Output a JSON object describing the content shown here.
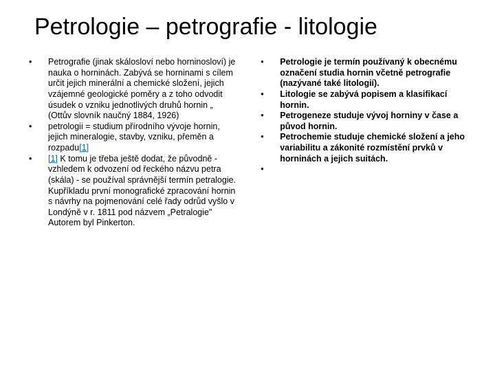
{
  "title": "Petrologie – petrografie - litologie",
  "left_items": [
    "Petrografie (jinak skálosloví nebo horninosloví) je nauka o horninách. Zabývá se horninami s cílem určit jejich minerální a chemické složení, jejich vzájemné geologické poměry a z toho odvodit úsudek o vzniku jednotlivých druhů hornin „ (Ottův slovník naučný 1884, 1926)",
    " petrologii = studium přírodního vývoje hornin, jejich mineralogie, stavby, vzniku, přeměn a rozpadu",
    " K tomu  je  třeba  ještě  dodat, že původně - vzhledem  k odvození od řeckého názvu petra (skála) - se používal správnější termín petralogie. Kupříkladu první monografické zpracování hornin s návrhy na pojmenování celé řady odrůd vyšlo v Londýně v r. 1811 pod názvem „Petralogie\" Autorem byl Pinkerton."
  ],
  "left_link_suffix": "[1]",
  "left_link_prefix": "[1]",
  "right_items": [
    "Petrologie je termín používaný k obecnému označení studia hornin včetně petrografie (nazývané také litologií).",
    "Litologie  se zabývá popisem a klasifikací hornin.",
    "Petrogeneze  studuje vývoj horniny v čase a původ hornin.",
    "Petrochemie studuje chemické složení a jeho variabilitu a zákonité rozmístění prvků v horninách a jejich suitách.",
    ""
  ],
  "bullet_char": "•"
}
